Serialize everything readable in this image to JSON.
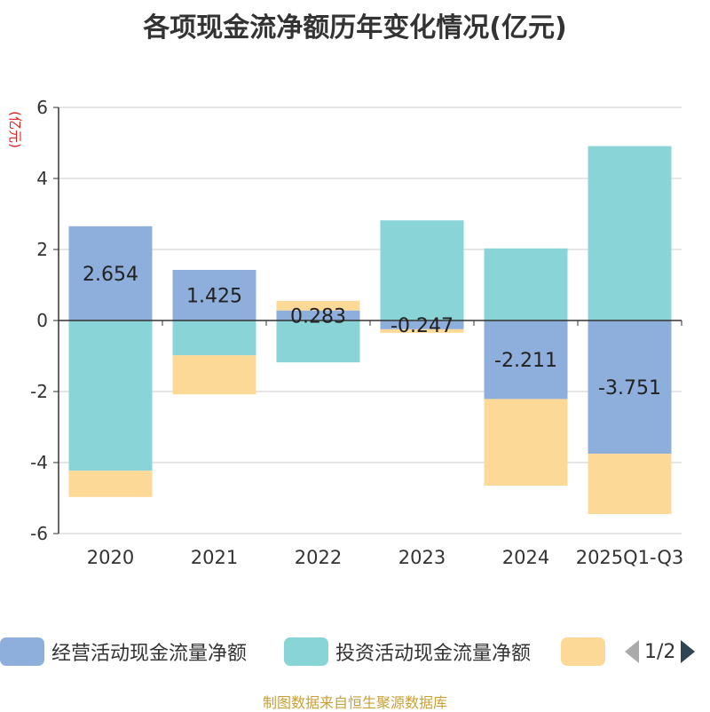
{
  "chart_data": {
    "type": "bar",
    "stacked": true,
    "title": "各项现金流净额历年变化情况(亿元)",
    "ylabel": "(亿元)",
    "ylim": [
      -6,
      6
    ],
    "yticks": [
      -6,
      -4,
      -2,
      0,
      2,
      4,
      6
    ],
    "categories": [
      "2020",
      "2021",
      "2022",
      "2023",
      "2024",
      "2025Q1-Q3"
    ],
    "series": [
      {
        "name": "经营活动现金流量净额",
        "color": "#8eaedb",
        "values": [
          2.654,
          1.425,
          0.283,
          -0.247,
          -2.211,
          -3.751
        ]
      },
      {
        "name": "投资活动现金流量净额",
        "color": "#88d4d7",
        "values": [
          -4.23,
          -0.98,
          -1.18,
          2.82,
          2.03,
          4.91
        ]
      },
      {
        "name": "",
        "color": "#fdd998",
        "values": [
          -0.74,
          -1.1,
          0.27,
          -0.1,
          -2.44,
          -1.7
        ]
      }
    ],
    "data_labels": [
      "2.654",
      "1.425",
      "0.283",
      "-0.247",
      "-2.211",
      "-3.751"
    ],
    "legend_position": "bottom"
  },
  "legend": {
    "items": [
      "经营活动现金流量净额",
      "投资活动现金流量净额",
      ""
    ],
    "page_text": "1/2"
  },
  "source": {
    "text": "制图数据来自恒生聚源数据库",
    "color": "#c8a038"
  }
}
